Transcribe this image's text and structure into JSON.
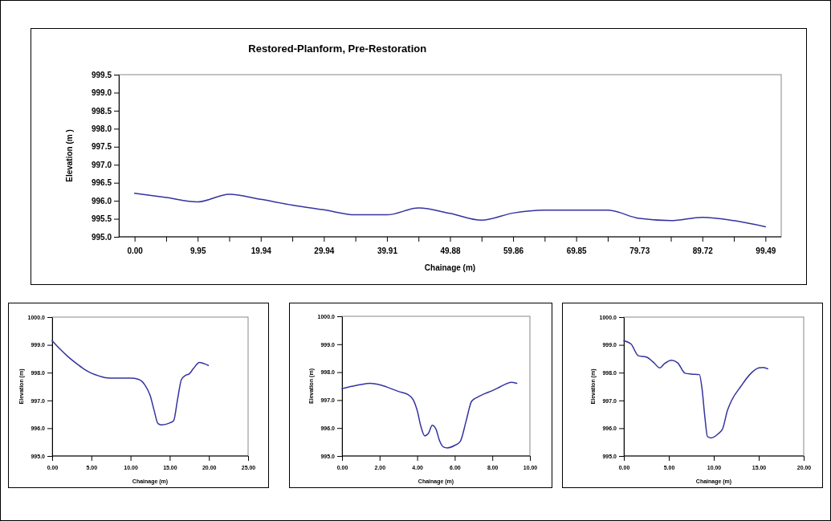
{
  "chart_data": [
    {
      "type": "line",
      "title": "Restored-Planform, Pre-Restoration",
      "xlabel": "Chainage (m)",
      "ylabel": "Elevation (m )",
      "categories": [
        "0.00",
        null,
        "9.95",
        null,
        "19.94",
        null,
        "29.94",
        null,
        "39.91",
        null,
        "49.88",
        null,
        "59.86",
        null,
        "69.85",
        null,
        "79.73",
        null,
        "89.72",
        null,
        "99.49"
      ],
      "series": [
        {
          "color": "#3333a0",
          "values": [
            996.21,
            996.09,
            995.97,
            996.18,
            996.04,
            995.88,
            995.75,
            995.61,
            995.61,
            995.8,
            995.65,
            995.46,
            995.66,
            995.74,
            995.74,
            995.74,
            995.51,
            995.45,
            995.54,
            995.45,
            995.28
          ]
        }
      ],
      "ylim": [
        995,
        999.5
      ],
      "yticks": [
        {
          "value": 995,
          "label": "995.0"
        },
        {
          "value": 995.5,
          "label": "995.5"
        },
        {
          "value": 996,
          "label": "996.0"
        },
        {
          "value": 996.5,
          "label": "996.5"
        },
        {
          "value": 997,
          "label": "997.0"
        },
        {
          "value": 997.5,
          "label": "997.5"
        },
        {
          "value": 998,
          "label": "998.0"
        },
        {
          "value": 998.5,
          "label": "998.5"
        },
        {
          "value": 999,
          "label": "999.0"
        },
        {
          "value": 999.5,
          "label": "999.5"
        }
      ],
      "grid": false,
      "marker": "none",
      "line_style": "solid"
    },
    {
      "type": "line",
      "xlabel": "Chainage (m)",
      "ylabel": "Elevation (m)",
      "series": [
        {
          "color": "#3333a0",
          "x": [
            0,
            1,
            2,
            3,
            4,
            5,
            6,
            7,
            8,
            9,
            10,
            11,
            11.8,
            12.5,
            13,
            13.5,
            14,
            15,
            15.5,
            16,
            16.5,
            17,
            17.5,
            18,
            18.8,
            19.3,
            19.7,
            19.93
          ],
          "values": [
            999.15,
            998.85,
            998.58,
            998.35,
            998.14,
            997.98,
            997.88,
            997.81,
            997.8,
            997.8,
            997.8,
            997.76,
            997.57,
            997.18,
            996.65,
            996.17,
            996.12,
            996.19,
            996.27,
            997.04,
            997.76,
            997.9,
            997.96,
            998.14,
            998.37,
            998.33,
            998.29,
            998.26
          ]
        }
      ],
      "xlim": [
        0,
        25
      ],
      "xticks": [
        {
          "value": 0,
          "label": "0.00"
        },
        {
          "value": 5,
          "label": "5.00"
        },
        {
          "value": 10,
          "label": "10.00"
        },
        {
          "value": 15,
          "label": "15.00"
        },
        {
          "value": 20,
          "label": "20.00"
        },
        {
          "value": 25,
          "label": "25.00"
        }
      ],
      "ylim": [
        995,
        1000
      ],
      "yticks": [
        {
          "value": 995,
          "label": "995.0"
        },
        {
          "value": 996,
          "label": "996.0"
        },
        {
          "value": 997,
          "label": "997.0"
        },
        {
          "value": 998,
          "label": "998.0"
        },
        {
          "value": 999,
          "label": "999.0"
        },
        {
          "value": 1000,
          "label": "1000.0"
        }
      ],
      "grid": false,
      "marker": "none",
      "line_style": "solid"
    },
    {
      "type": "line",
      "xlabel": "Chainage (m)",
      "ylabel": "Elevation (m)",
      "series": [
        {
          "color": "#3333a0",
          "x": [
            0,
            0.5,
            1,
            1.5,
            2,
            2.5,
            3,
            3.5,
            3.8,
            4,
            4.2,
            4.4,
            4.6,
            4.8,
            5,
            5.2,
            5.4,
            5.6,
            6,
            6.3,
            6.6,
            6.9,
            7.2,
            7.6,
            8,
            8.4,
            8.8,
            9,
            9.3
          ],
          "values": [
            997.41,
            997.49,
            997.56,
            997.6,
            997.55,
            997.44,
            997.31,
            997.2,
            997,
            996.63,
            996.05,
            995.72,
            995.81,
            996.1,
            995.96,
            995.53,
            995.32,
            995.29,
            995.38,
            995.53,
            996.24,
            996.96,
            997.1,
            997.23,
            997.34,
            997.47,
            997.6,
            997.64,
            997.6
          ]
        }
      ],
      "xlim": [
        0,
        10
      ],
      "xticks": [
        {
          "value": 0,
          "label": "0.00"
        },
        {
          "value": 2,
          "label": "2.00"
        },
        {
          "value": 4,
          "label": "4.00"
        },
        {
          "value": 6,
          "label": "6.00"
        },
        {
          "value": 8,
          "label": "8.00"
        },
        {
          "value": 10,
          "label": "10.00"
        }
      ],
      "ylim": [
        995,
        1000
      ],
      "yticks": [
        {
          "value": 995,
          "label": "995.0"
        },
        {
          "value": 996,
          "label": "996.0"
        },
        {
          "value": 997,
          "label": "997.0"
        },
        {
          "value": 998,
          "label": "998.0"
        },
        {
          "value": 999,
          "label": "999.0"
        },
        {
          "value": 1000,
          "label": "1000.0"
        }
      ],
      "grid": false,
      "marker": "none",
      "line_style": "solid"
    },
    {
      "type": "line",
      "xlabel": "Chainage (m)",
      "ylabel": "Elevation (m)",
      "series": [
        {
          "color": "#3333a0",
          "x": [
            0,
            0.8,
            1.6,
            2.5,
            3.3,
            4,
            4.5,
            5.3,
            6,
            6.8,
            7.5,
            8.4,
            8.7,
            9,
            9.3,
            9.7,
            10.5,
            11,
            11.5,
            12,
            13,
            14,
            15,
            15.5,
            16
          ],
          "values": [
            999.15,
            999.03,
            998.61,
            998.56,
            998.37,
            998.17,
            998.32,
            998.45,
            998.35,
            997.98,
            997.95,
            997.93,
            997.4,
            996.43,
            995.7,
            995.65,
            995.8,
            995.99,
            996.62,
            997.01,
            997.5,
            997.93,
            998.17,
            998.19,
            998.14
          ]
        }
      ],
      "xlim": [
        0,
        20
      ],
      "xticks": [
        {
          "value": 0,
          "label": "0.00"
        },
        {
          "value": 5,
          "label": "5.00"
        },
        {
          "value": 10,
          "label": "10.00"
        },
        {
          "value": 15,
          "label": "15.00"
        },
        {
          "value": 20,
          "label": "20.00"
        }
      ],
      "ylim": [
        995,
        1000
      ],
      "yticks": [
        {
          "value": 995,
          "label": "995.0"
        },
        {
          "value": 996,
          "label": "996.0"
        },
        {
          "value": 997,
          "label": "997.0"
        },
        {
          "value": 998,
          "label": "998.0"
        },
        {
          "value": 999,
          "label": "999.0"
        },
        {
          "value": 1000,
          "label": "1000.0"
        }
      ],
      "grid": false,
      "marker": "none",
      "line_style": "solid"
    }
  ]
}
